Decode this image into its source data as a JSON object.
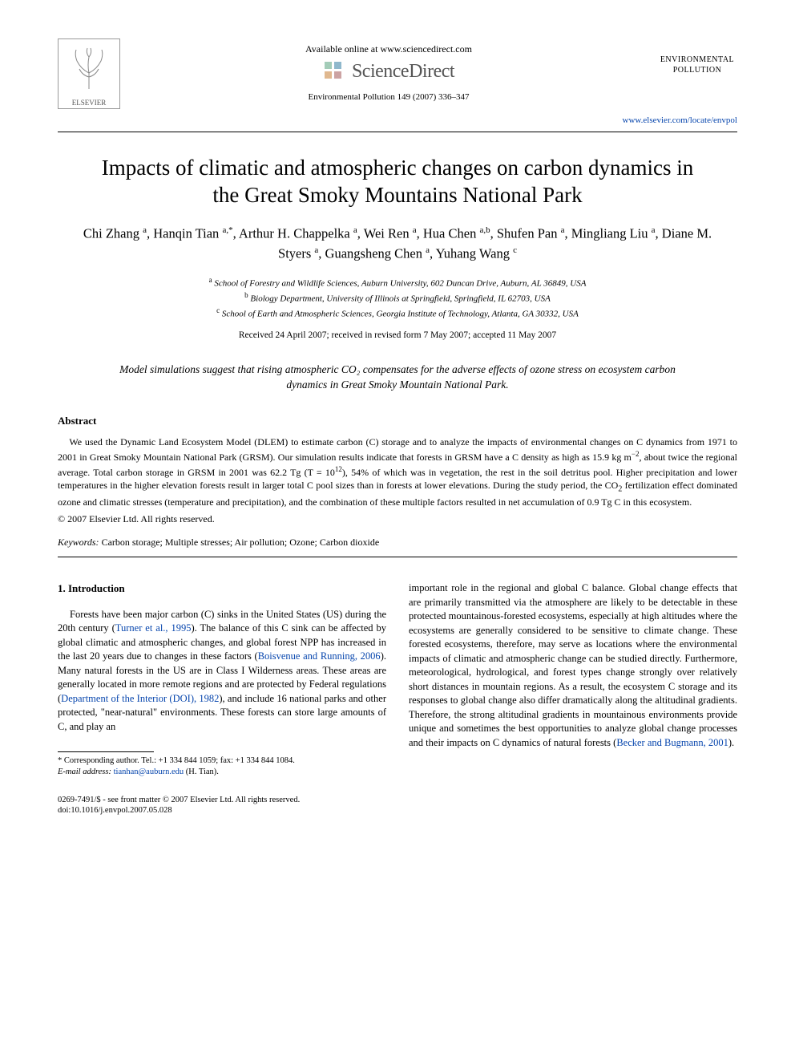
{
  "header": {
    "available_text": "Available online at www.sciencedirect.com",
    "sciencedirect": "ScienceDirect",
    "citation": "Environmental Pollution 149 (2007) 336–347",
    "journal_name_line1": "ENVIRONMENTAL",
    "journal_name_line2": "POLLUTION",
    "journal_url": "www.elsevier.com/locate/envpol",
    "elsevier": "ELSEVIER"
  },
  "title": "Impacts of climatic and atmospheric changes on carbon dynamics in the Great Smoky Mountains National Park",
  "authors_html": "Chi Zhang <sup>a</sup>, Hanqin Tian <sup>a,*</sup>, Arthur H. Chappelka <sup>a</sup>, Wei Ren <sup>a</sup>, Hua Chen <sup>a,b</sup>, Shufen Pan <sup>a</sup>, Mingliang Liu <sup>a</sup>, Diane M. Styers <sup>a</sup>, Guangsheng Chen <sup>a</sup>, Yuhang Wang <sup>c</sup>",
  "affiliations": {
    "a": "School of Forestry and Wildlife Sciences, Auburn University, 602 Duncan Drive, Auburn, AL 36849, USA",
    "b": "Biology Department, University of Illinois at Springfield, Springfield, IL 62703, USA",
    "c": "School of Earth and Atmospheric Sciences, Georgia Institute of Technology, Atlanta, GA 30332, USA"
  },
  "dates": "Received 24 April 2007; received in revised form 7 May 2007; accepted 11 May 2007",
  "capsule": "Model simulations suggest that rising atmospheric CO₂ compensates for the adverse effects of ozone stress on ecosystem carbon dynamics in Great Smoky Mountain National Park.",
  "abstract": {
    "heading": "Abstract",
    "body_html": "We used the Dynamic Land Ecosystem Model (DLEM) to estimate carbon (C) storage and to analyze the impacts of environmental changes on C dynamics from 1971 to 2001 in Great Smoky Mountain National Park (GRSM). Our simulation results indicate that forests in GRSM have a C density as high as 15.9 kg m<sup>−2</sup>, about twice the regional average. Total carbon storage in GRSM in 2001 was 62.2 Tg (T = 10<sup>12</sup>), 54% of which was in vegetation, the rest in the soil detritus pool. Higher precipitation and lower temperatures in the higher elevation forests result in larger total C pool sizes than in forests at lower elevations. During the study period, the CO<sub>2</sub> fertilization effect dominated ozone and climatic stresses (temperature and precipitation), and the combination of these multiple factors resulted in net accumulation of 0.9 Tg C in this ecosystem.",
    "copyright": "© 2007 Elsevier Ltd. All rights reserved."
  },
  "keywords": {
    "label": "Keywords:",
    "text": "Carbon storage; Multiple stresses; Air pollution; Ozone; Carbon dioxide"
  },
  "intro": {
    "heading": "1. Introduction",
    "col1_html": "Forests have been major carbon (C) sinks in the United States (US) during the 20th century (<span class='cite'>Turner et al., 1995</span>). The balance of this C sink can be affected by global climatic and atmospheric changes, and global forest NPP has increased in the last 20 years due to changes in these factors (<span class='cite'>Boisvenue and Running, 2006</span>). Many natural forests in the US are in Class I Wilderness areas. These areas are generally located in more remote regions and are protected by Federal regulations (<span class='cite'>Department of the Interior (DOI), 1982</span>), and include 16 national parks and other protected, \"near-natural\" environments. These forests can store large amounts of C, and play an",
    "col2_html": "important role in the regional and global C balance. Global change effects that are primarily transmitted via the atmosphere are likely to be detectable in these protected mountainous-forested ecosystems, especially at high altitudes where the ecosystems are generally considered to be sensitive to climate change. These forested ecosystems, therefore, may serve as locations where the environmental impacts of climatic and atmospheric change can be studied directly. Furthermore, meteorological, hydrological, and forest types change strongly over relatively short distances in mountain regions. As a result, the ecosystem C storage and its responses to global change also differ dramatically along the altitudinal gradients. Therefore, the strong altitudinal gradients in mountainous environments provide unique and sometimes the best opportunities to analyze global change processes and their impacts on C dynamics of natural forests (<span class='cite'>Becker and Bugmann, 2001</span>)."
  },
  "footnote": {
    "corr": "* Corresponding author. Tel.: +1 334 844 1059; fax: +1 334 844 1084.",
    "email_label": "E-mail address:",
    "email": "tianhan@auburn.edu",
    "email_paren": "(H. Tian)."
  },
  "footer": {
    "issn": "0269-7491/$ - see front matter © 2007 Elsevier Ltd. All rights reserved.",
    "doi": "doi:10.1016/j.envpol.2007.05.028"
  },
  "colors": {
    "link": "#0645ad",
    "text": "#000000",
    "logo_gray": "#555555"
  }
}
